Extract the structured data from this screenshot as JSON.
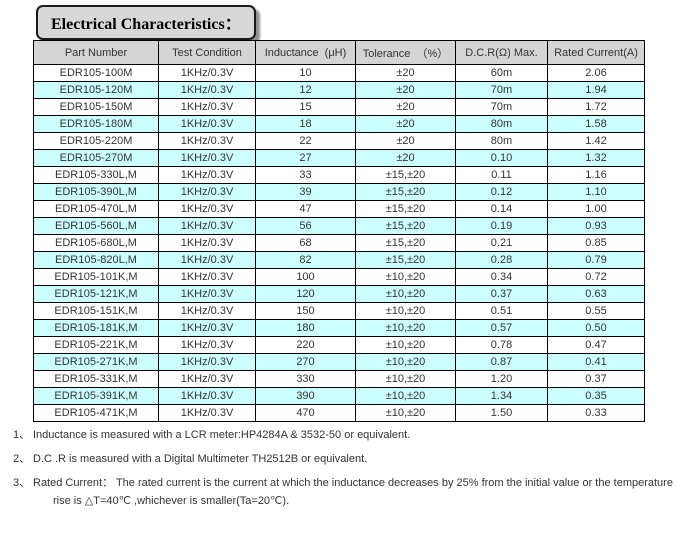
{
  "page": {
    "title": "Electrical Characteristics："
  },
  "table": {
    "columns": [
      "Part Number",
      "Test Condition",
      "Inductance  (μH)",
      "Tolerance  （%）",
      "D.C.R(Ω) Max.",
      "Rated Current(A)"
    ],
    "rows": [
      [
        "EDR105-100M",
        "1KHz/0.3V",
        "10",
        "±20",
        "60m",
        "2.06"
      ],
      [
        "EDR105-120M",
        "1KHz/0.3V",
        "12",
        "±20",
        "70m",
        "1.94"
      ],
      [
        "EDR105-150M",
        "1KHz/0.3V",
        "15",
        "±20",
        "70m",
        "1.72"
      ],
      [
        "EDR105-180M",
        "1KHz/0.3V",
        "18",
        "±20",
        "80m",
        "1.58"
      ],
      [
        "EDR105-220M",
        "1KHz/0.3V",
        "22",
        "±20",
        "80m",
        "1.42"
      ],
      [
        "EDR105-270M",
        "1KHz/0.3V",
        "27",
        "±20",
        "0.10",
        "1.32"
      ],
      [
        "EDR105-330L,M",
        "1KHz/0.3V",
        "33",
        "±15,±20",
        "0.11",
        "1.16"
      ],
      [
        "EDR105-390L,M",
        "1KHz/0.3V",
        "39",
        "±15,±20",
        "0.12",
        "1.10"
      ],
      [
        "EDR105-470L,M",
        "1KHz/0.3V",
        "47",
        "±15,±20",
        "0.14",
        "1.00"
      ],
      [
        "EDR105-560L,M",
        "1KHz/0.3V",
        "56",
        "±15,±20",
        "0.19",
        "0.93"
      ],
      [
        "EDR105-680L,M",
        "1KHz/0.3V",
        "68",
        "±15,±20",
        "0.21",
        "0.85"
      ],
      [
        "EDR105-820L,M",
        "1KHz/0.3V",
        "82",
        "±15,±20",
        "0.28",
        "0.79"
      ],
      [
        "EDR105-101K,M",
        "1KHz/0.3V",
        "100",
        "±10,±20",
        "0.34",
        "0.72"
      ],
      [
        "EDR105-121K,M",
        "1KHz/0.3V",
        "120",
        "±10,±20",
        "0.37",
        "0.63"
      ],
      [
        "EDR105-151K,M",
        "1KHz/0.3V",
        "150",
        "±10,±20",
        "0.51",
        "0.55"
      ],
      [
        "EDR105-181K,M",
        "1KHz/0.3V",
        "180",
        "±10,±20",
        "0.57",
        "0.50"
      ],
      [
        "EDR105-221K,M",
        "1KHz/0.3V",
        "220",
        "±10,±20",
        "0.78",
        "0.47"
      ],
      [
        "EDR105-271K,M",
        "1KHz/0.3V",
        "270",
        "±10,±20",
        "0.87",
        "0.41"
      ],
      [
        "EDR105-331K,M",
        "1KHz/0.3V",
        "330",
        "±10,±20",
        "1.20",
        "0.37"
      ],
      [
        "EDR105-391K,M",
        "1KHz/0.3V",
        "390",
        "±10,±20",
        "1.34",
        "0.35"
      ],
      [
        "EDR105-471K,M",
        "1KHz/0.3V",
        "470",
        "±10,±20",
        "1.50",
        "0.33"
      ]
    ]
  },
  "notes": [
    {
      "num": "1、",
      "lines": [
        "Inductance is measured with a LCR meter:HP4284A & 3532-50 or equivalent."
      ]
    },
    {
      "num": "2、",
      "lines": [
        "D.C .R is measured with a Digital Multimeter TH2512B or equivalent."
      ]
    },
    {
      "num": "3、",
      "lines": [
        "Rated Current： The rated current is the current at which the inductance decreases by 25% from the initial value or the temperature",
        "rise is △T=40℃ ,whichever is smaller(Ta=20℃)."
      ]
    }
  ],
  "colors": {
    "row_alt": "#ccffff",
    "header_bg": "#d4d4d4",
    "title_box_bg": "#d8d8d8",
    "border": "#000000",
    "text": "#333333"
  }
}
